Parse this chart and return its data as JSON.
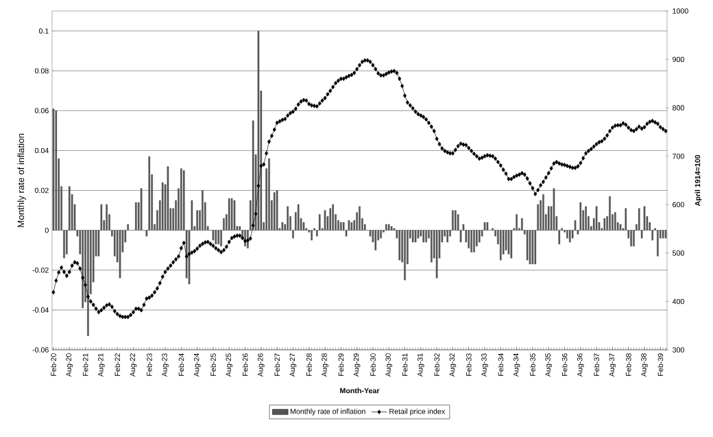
{
  "chart_data": {
    "type": "bar",
    "xlabel": "Month-Year",
    "ylabel": "Monthly rate of inflation",
    "y2label": "April 1914=100",
    "categories": [
      "Feb-20",
      null,
      null,
      null,
      null,
      null,
      "Aug-20",
      null,
      null,
      null,
      null,
      null,
      "Feb-21",
      null,
      null,
      null,
      null,
      null,
      "Aug-21",
      null,
      null,
      null,
      null,
      null,
      "Feb-22",
      null,
      null,
      null,
      null,
      null,
      "Aug-22",
      null,
      null,
      null,
      null,
      null,
      "Feb-23",
      null,
      null,
      null,
      null,
      null,
      "Aug-23",
      null,
      null,
      null,
      null,
      null,
      "Feb-24",
      null,
      null,
      null,
      null,
      null,
      "Aug-24",
      null,
      null,
      null,
      null,
      null,
      "Feb-25",
      null,
      null,
      null,
      null,
      null,
      "Aug-25",
      null,
      null,
      null,
      null,
      null,
      "Feb-26",
      null,
      null,
      null,
      null,
      null,
      "Aug-26",
      null,
      null,
      null,
      null,
      null,
      "Feb-27",
      null,
      null,
      null,
      null,
      null,
      "Aug-27",
      null,
      null,
      null,
      null,
      null,
      "Feb-28",
      null,
      null,
      null,
      null,
      null,
      "Aug-28",
      null,
      null,
      null,
      null,
      null,
      "Feb-29",
      null,
      null,
      null,
      null,
      null,
      "Aug-29",
      null,
      null,
      null,
      null,
      null,
      "Feb-30",
      null,
      null,
      null,
      null,
      null,
      "Aug-30",
      null,
      null,
      null,
      null,
      null,
      "Feb-31",
      null,
      null,
      null,
      null,
      null,
      "Aug-31",
      null,
      null,
      null,
      null,
      null,
      "Feb-32",
      null,
      null,
      null,
      null,
      null,
      "Aug-32",
      null,
      null,
      null,
      null,
      null,
      "Feb-33",
      null,
      null,
      null,
      null,
      null,
      "Aug-33",
      null,
      null,
      null,
      null,
      null,
      "Feb-34",
      null,
      null,
      null,
      null,
      null,
      "Aug-34",
      null,
      null,
      null,
      null,
      null,
      "Feb-35",
      null,
      null,
      null,
      null,
      null,
      "Aug-35",
      null,
      null,
      null,
      null,
      null,
      "Feb-36",
      null,
      null,
      null,
      null,
      null,
      "Aug-36",
      null,
      null,
      null,
      null,
      null,
      "Feb-37",
      null,
      null,
      null,
      null,
      null,
      "Aug-37",
      null,
      null,
      null,
      null,
      null,
      "Feb-38",
      null,
      null,
      null,
      null,
      null,
      "Aug-38",
      null,
      null,
      null,
      null,
      null,
      "Feb-39",
      null,
      null
    ],
    "ylim": [
      -0.06,
      0.11
    ],
    "yticks": [
      -0.06,
      -0.04,
      -0.02,
      0,
      0.02,
      0.04,
      0.06,
      0.08,
      0.1
    ],
    "y2lim": [
      300,
      1000
    ],
    "y2ticks": [
      300,
      400,
      500,
      600,
      700,
      800,
      900,
      1000
    ],
    "grid": "y",
    "legend": "bottom",
    "series": [
      {
        "name": "Monthly rate of inflation",
        "color": "#555555",
        "values": [
          0.061,
          0.06,
          0.036,
          0.022,
          -0.014,
          -0.012,
          0.022,
          0.018,
          0.013,
          -0.003,
          -0.012,
          -0.039,
          -0.036,
          -0.053,
          -0.032,
          -0.026,
          -0.013,
          -0.013,
          0.013,
          0.005,
          0.013,
          0.008,
          -0.003,
          -0.013,
          -0.016,
          -0.024,
          -0.011,
          -0.006,
          0.003,
          0,
          0,
          0.014,
          0.014,
          0.021,
          0,
          -0.003,
          0.037,
          0.028,
          0.003,
          0.01,
          0.015,
          0.024,
          0.023,
          0.032,
          0.011,
          0.011,
          0.015,
          0.021,
          0.031,
          0.03,
          -0.024,
          -0.027,
          0.015,
          0.002,
          0.01,
          0.01,
          0.02,
          0.014,
          0.002,
          0,
          -0.005,
          -0.007,
          -0.007,
          -0.008,
          0.006,
          0.008,
          0.016,
          0.016,
          0.015,
          0.002,
          0.002,
          -0.004,
          -0.008,
          -0.009,
          0.015,
          0.055,
          0.038,
          0.1,
          0.07,
          0.004,
          0.031,
          0.036,
          0.015,
          0.019,
          0.02,
          0.001,
          0.004,
          0.003,
          0.012,
          0.007,
          -0.004,
          0.009,
          0.013,
          0.006,
          0.004,
          0.001,
          -0.001,
          -0.005,
          0.001,
          -0.003,
          0.008,
          0.001,
          0.01,
          0.007,
          0.011,
          0.013,
          0.008,
          0.005,
          0.004,
          0.004,
          -0.003,
          0.005,
          0.004,
          0.005,
          0.009,
          0.012,
          0.006,
          0.003,
          0,
          -0.003,
          -0.006,
          -0.01,
          -0.005,
          -0.004,
          -0.001,
          0.003,
          0.003,
          0.002,
          0.001,
          -0.004,
          -0.015,
          -0.016,
          -0.025,
          -0.017,
          -0.004,
          -0.006,
          -0.006,
          -0.004,
          -0.003,
          -0.006,
          -0.006,
          -0.004,
          -0.016,
          -0.014,
          -0.024,
          -0.014,
          -0.006,
          -0.003,
          -0.006,
          -0.003,
          0.01,
          0.01,
          0.008,
          -0.006,
          0.003,
          -0.006,
          -0.009,
          -0.011,
          -0.011,
          -0.008,
          -0.006,
          -0.003,
          0.004,
          0.004,
          0,
          0.001,
          -0.003,
          -0.007,
          -0.015,
          -0.012,
          -0.01,
          -0.012,
          -0.014,
          0.001,
          0.008,
          0.001,
          0.006,
          -0.002,
          -0.015,
          -0.017,
          -0.017,
          -0.017,
          0.013,
          0.015,
          0.018,
          0.008,
          0.012,
          0.012,
          0.021,
          0.007,
          -0.007,
          0.001,
          -0.001,
          -0.004,
          -0.006,
          -0.004,
          0.005,
          -0.002,
          0.014,
          0.01,
          0.012,
          0.007,
          0.002,
          0.006,
          0.012,
          0.004,
          0.001,
          0.006,
          0.007,
          0.017,
          0.008,
          0.009,
          0.004,
          0.003,
          0.001,
          0.011,
          -0.004,
          -0.008,
          -0.008,
          0.003,
          0.011,
          -0.004,
          0.012,
          0.007,
          0.004,
          -0.005,
          0.001,
          -0.013,
          -0.004,
          -0.004,
          -0.004
        ]
      },
      {
        "name": "Retail price index",
        "type": "line",
        "axis": "y2",
        "color": "#000000",
        "marker": "diamond",
        "values": [
          419,
          443,
          460,
          470,
          461,
          453,
          461,
          474,
          481,
          479,
          468,
          449,
          434,
          410,
          400,
          393,
          385,
          378,
          382,
          387,
          392,
          394,
          389,
          380,
          374,
          370,
          368,
          368,
          368,
          372,
          378,
          385,
          385,
          382,
          393,
          406,
          408,
          412,
          419,
          427,
          438,
          451,
          461,
          468,
          474,
          481,
          487,
          493,
          510,
          521,
          493,
          498,
          501,
          504,
          509,
          515,
          519,
          522,
          523,
          519,
          515,
          510,
          506,
          502,
          506,
          513,
          523,
          531,
          534,
          536,
          536,
          531,
          525,
          526,
          530,
          557,
          581,
          639,
          680,
          683,
          706,
          730,
          742,
          755,
          769,
          772,
          775,
          777,
          784,
          789,
          792,
          798,
          807,
          813,
          816,
          815,
          808,
          805,
          804,
          803,
          809,
          815,
          820,
          828,
          835,
          843,
          851,
          856,
          860,
          860,
          863,
          866,
          868,
          872,
          880,
          888,
          895,
          898,
          898,
          895,
          888,
          880,
          871,
          867,
          867,
          870,
          873,
          875,
          876,
          872,
          860,
          845,
          825,
          811,
          805,
          799,
          792,
          787,
          784,
          781,
          776,
          769,
          761,
          752,
          736,
          725,
          716,
          711,
          708,
          706,
          706,
          713,
          721,
          726,
          724,
          723,
          717,
          711,
          705,
          700,
          695,
          697,
          700,
          702,
          701,
          700,
          695,
          688,
          681,
          672,
          664,
          653,
          653,
          657,
          660,
          662,
          665,
          662,
          654,
          644,
          634,
          622,
          630,
          640,
          647,
          656,
          665,
          675,
          685,
          688,
          685,
          683,
          682,
          680,
          678,
          676,
          676,
          679,
          686,
          696,
          706,
          711,
          715,
          720,
          725,
          729,
          731,
          736,
          743,
          752,
          759,
          763,
          764,
          764,
          768,
          765,
          759,
          754,
          752,
          756,
          761,
          757,
          760,
          767,
          771,
          773,
          770,
          767,
          760,
          756,
          752
        ]
      }
    ]
  }
}
